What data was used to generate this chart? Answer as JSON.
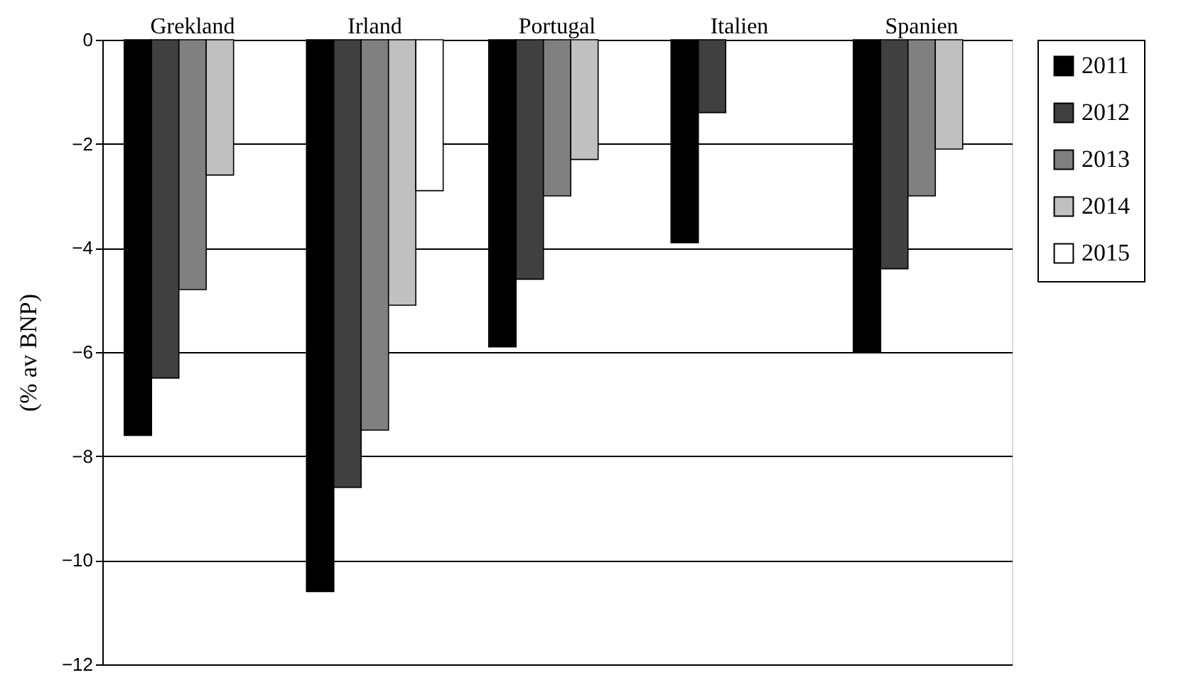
{
  "chart_data": {
    "type": "bar",
    "ylabel": "(% av BNP)",
    "categories": [
      "Grekland",
      "Irland",
      "Portugal",
      "Italien",
      "Spanien"
    ],
    "series": [
      {
        "name": "2011",
        "color": "#000000",
        "values": [
          -7.6,
          -10.6,
          -5.9,
          -3.9,
          -6.0
        ]
      },
      {
        "name": "2012",
        "color": "#404040",
        "values": [
          -6.5,
          -8.6,
          -4.6,
          -1.4,
          -4.4
        ]
      },
      {
        "name": "2013",
        "color": "#808080",
        "values": [
          -4.8,
          -7.5,
          -3.0,
          null,
          -3.0
        ]
      },
      {
        "name": "2014",
        "color": "#c0c0c0",
        "values": [
          -2.6,
          -5.1,
          -2.3,
          null,
          -2.1
        ]
      },
      {
        "name": "2015",
        "color": "#ffffff",
        "values": [
          null,
          -2.9,
          null,
          null,
          null
        ]
      }
    ],
    "ylim": [
      -12,
      0
    ],
    "yticks": [
      -12,
      -10,
      -8,
      -6,
      -4,
      -2,
      0
    ],
    "grid": "y",
    "legend": "right"
  }
}
